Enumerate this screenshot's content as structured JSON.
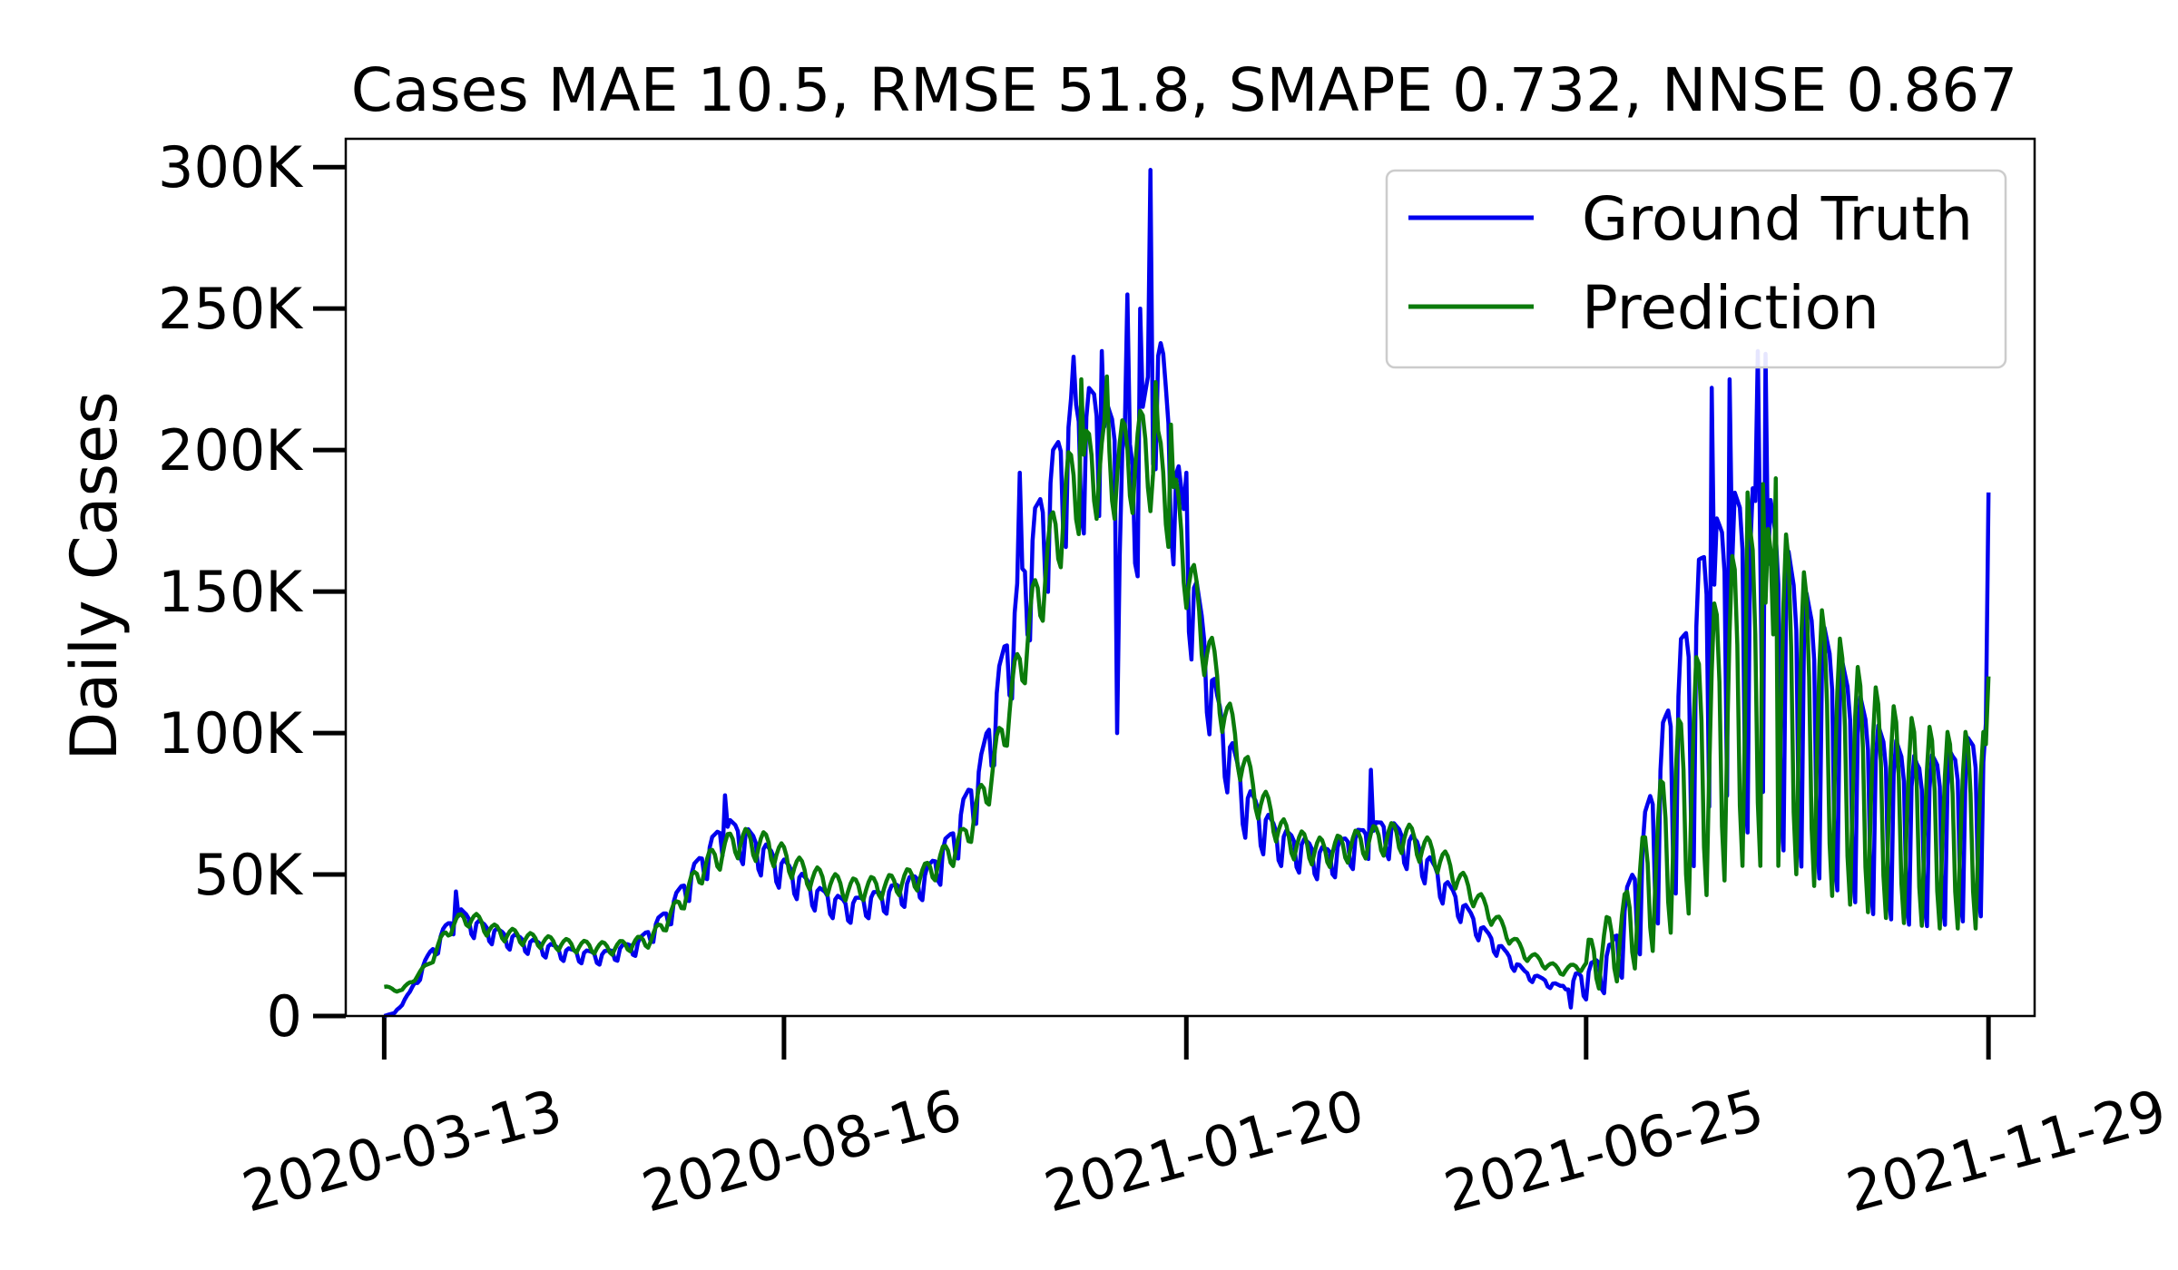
{
  "chart_data": {
    "type": "line",
    "title": "Cases MAE 10.5, RMSE 51.8, SMAPE 0.732, NNSE 0.867",
    "xlabel": "",
    "ylabel": "Daily Cases",
    "x_start": "2020-03-13",
    "x_end": "2021-11-29",
    "xlim": [
      "2020-02-27",
      "2021-12-17"
    ],
    "ylim": [
      0,
      310000
    ],
    "x_ticks": [
      "2020-03-13",
      "2020-08-16",
      "2021-01-20",
      "2021-06-25",
      "2021-11-29"
    ],
    "y_ticks": [
      0,
      50000,
      100000,
      150000,
      200000,
      250000,
      300000
    ],
    "y_tick_labels": [
      "0",
      "50K",
      "100K",
      "150K",
      "200K",
      "250K",
      "300K"
    ],
    "grid": false,
    "legend_position": "top-right",
    "series": [
      {
        "name": "Ground Truth",
        "color": "#0000ee",
        "anchors": [
          [
            "2020-03-13",
            0
          ],
          [
            "2020-03-17",
            1000
          ],
          [
            "2020-03-23",
            8000
          ],
          [
            "2020-03-30",
            20000
          ],
          [
            "2020-04-06",
            30000
          ],
          [
            "2020-04-12",
            35000
          ],
          [
            "2020-04-17",
            32000
          ],
          [
            "2020-04-28",
            28000
          ],
          [
            "2020-05-10",
            25000
          ],
          [
            "2020-05-25",
            22000
          ],
          [
            "2020-06-06",
            21000
          ],
          [
            "2020-06-20",
            25000
          ],
          [
            "2020-07-01",
            35000
          ],
          [
            "2020-07-12",
            50000
          ],
          [
            "2020-07-24",
            65000
          ],
          [
            "2020-08-01",
            62000
          ],
          [
            "2020-08-15",
            52000
          ],
          [
            "2020-08-30",
            42000
          ],
          [
            "2020-09-10",
            38000
          ],
          [
            "2020-09-25",
            42000
          ],
          [
            "2020-10-10",
            48000
          ],
          [
            "2020-10-20",
            60000
          ],
          [
            "2020-11-01",
            85000
          ],
          [
            "2020-11-12",
            130000
          ],
          [
            "2020-11-22",
            165000
          ],
          [
            "2020-12-05",
            200000
          ],
          [
            "2020-12-15",
            205000
          ],
          [
            "2021-01-01",
            185000
          ],
          [
            "2021-01-08",
            230000
          ],
          [
            "2021-01-15",
            190000
          ],
          [
            "2021-01-22",
            150000
          ],
          [
            "2021-02-01",
            105000
          ],
          [
            "2021-02-12",
            75000
          ],
          [
            "2021-02-25",
            62000
          ],
          [
            "2021-03-15",
            55000
          ],
          [
            "2021-03-25",
            60000
          ],
          [
            "2021-04-08",
            65000
          ],
          [
            "2021-04-20",
            58000
          ],
          [
            "2021-05-01",
            45000
          ],
          [
            "2021-05-15",
            30000
          ],
          [
            "2021-06-01",
            15000
          ],
          [
            "2021-06-15",
            10000
          ],
          [
            "2021-06-25",
            13000
          ],
          [
            "2021-07-05",
            20000
          ],
          [
            "2021-07-15",
            45000
          ],
          [
            "2021-07-28",
            90000
          ],
          [
            "2021-08-10",
            130000
          ],
          [
            "2021-08-25",
            145000
          ],
          [
            "2021-09-05",
            140000
          ],
          [
            "2021-09-15",
            120000
          ],
          [
            "2021-09-30",
            100000
          ],
          [
            "2021-10-15",
            80000
          ],
          [
            "2021-11-01",
            70000
          ],
          [
            "2021-11-15",
            72000
          ],
          [
            "2021-11-29",
            80000
          ]
        ],
        "peaks": [
          [
            "2020-04-10",
            44000
          ],
          [
            "2020-07-24",
            78000
          ],
          [
            "2020-11-16",
            192000
          ],
          [
            "2020-11-25",
            178000
          ],
          [
            "2020-12-07",
            233000
          ],
          [
            "2020-12-18",
            235000
          ],
          [
            "2020-12-28",
            255000
          ],
          [
            "2021-01-02",
            250000
          ],
          [
            "2021-01-06",
            299000
          ],
          [
            "2021-01-11",
            234000
          ],
          [
            "2021-01-20",
            192000
          ],
          [
            "2021-04-02",
            87000
          ],
          [
            "2021-08-13",
            222000
          ],
          [
            "2021-08-20",
            225000
          ],
          [
            "2021-08-31",
            235000
          ],
          [
            "2021-09-03",
            234000
          ],
          [
            "2021-11-29",
            185000
          ]
        ],
        "troughs": [
          [
            "2020-12-24",
            100000
          ],
          [
            "2020-12-31",
            160000
          ],
          [
            "2021-06-19",
            3000
          ]
        ]
      },
      {
        "name": "Prediction",
        "color": "#0b7b0b",
        "anchors": [
          [
            "2020-03-13",
            10000
          ],
          [
            "2020-03-20",
            9000
          ],
          [
            "2020-03-30",
            18000
          ],
          [
            "2020-04-08",
            32000
          ],
          [
            "2020-04-15",
            35000
          ],
          [
            "2020-04-25",
            30000
          ],
          [
            "2020-05-10",
            27000
          ],
          [
            "2020-05-25",
            25000
          ],
          [
            "2020-06-10",
            24000
          ],
          [
            "2020-06-25",
            27000
          ],
          [
            "2020-07-05",
            38000
          ],
          [
            "2020-07-15",
            52000
          ],
          [
            "2020-07-28",
            62000
          ],
          [
            "2020-08-10",
            60000
          ],
          [
            "2020-08-25",
            50000
          ],
          [
            "2020-09-10",
            45000
          ],
          [
            "2020-09-25",
            46000
          ],
          [
            "2020-10-10",
            50000
          ],
          [
            "2020-10-25",
            62000
          ],
          [
            "2020-11-05",
            85000
          ],
          [
            "2020-11-15",
            120000
          ],
          [
            "2020-11-25",
            155000
          ],
          [
            "2020-12-05",
            185000
          ],
          [
            "2020-12-15",
            195000
          ],
          [
            "2020-12-25",
            195000
          ],
          [
            "2021-01-05",
            200000
          ],
          [
            "2021-01-15",
            180000
          ],
          [
            "2021-01-25",
            140000
          ],
          [
            "2021-02-05",
            105000
          ],
          [
            "2021-02-15",
            80000
          ],
          [
            "2021-03-01",
            62000
          ],
          [
            "2021-03-15",
            58000
          ],
          [
            "2021-04-01",
            62000
          ],
          [
            "2021-04-15",
            64000
          ],
          [
            "2021-04-30",
            55000
          ],
          [
            "2021-05-15",
            40000
          ],
          [
            "2021-06-01",
            22000
          ],
          [
            "2021-06-15",
            16000
          ],
          [
            "2021-06-25",
            18000
          ],
          [
            "2021-07-10",
            30000
          ],
          [
            "2021-07-25",
            60000
          ],
          [
            "2021-08-10",
            95000
          ],
          [
            "2021-08-25",
            120000
          ],
          [
            "2021-09-10",
            120000
          ],
          [
            "2021-09-25",
            100000
          ],
          [
            "2021-10-10",
            85000
          ],
          [
            "2021-10-25",
            75000
          ],
          [
            "2021-11-10",
            70000
          ],
          [
            "2021-11-29",
            70000
          ]
        ],
        "peaks": [
          [
            "2020-12-10",
            225000
          ],
          [
            "2020-12-20",
            226000
          ],
          [
            "2021-01-08",
            224000
          ],
          [
            "2021-01-14",
            209000
          ],
          [
            "2021-08-27",
            185000
          ],
          [
            "2021-09-02",
            188000
          ],
          [
            "2021-09-07",
            190000
          ],
          [
            "2021-11-29",
            120000
          ]
        ],
        "troughs": []
      }
    ]
  }
}
